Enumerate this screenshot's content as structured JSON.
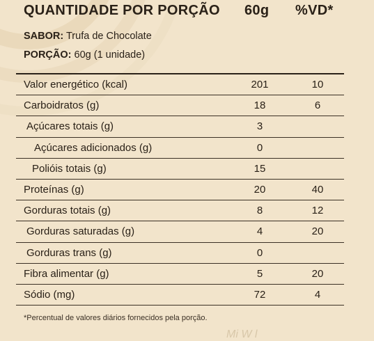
{
  "header": {
    "title": "QUANTIDADE POR PORÇÃO",
    "quantity": "60g",
    "dv": "%VD*"
  },
  "flavor": {
    "label": "SABOR:",
    "value": "Trufa de Chocolate"
  },
  "portion": {
    "label": "PORÇÃO:",
    "value": "60g (1 unidade)"
  },
  "rows": [
    {
      "name": "Valor energético (kcal)",
      "amount": "201",
      "dv": "10"
    },
    {
      "name": "Carboidratos (g)",
      "amount": "18",
      "dv": "6"
    },
    {
      "name": "Açúcares totais (g)",
      "amount": "3",
      "dv": ""
    },
    {
      "name": "Açúcares adicionados (g)",
      "amount": "0",
      "dv": ""
    },
    {
      "name": "Polióis totais (g)",
      "amount": "15",
      "dv": ""
    },
    {
      "name": "Proteínas (g)",
      "amount": "20",
      "dv": "40"
    },
    {
      "name": "Gorduras totais (g)",
      "amount": "8",
      "dv": "12"
    },
    {
      "name": "Gorduras saturadas (g)",
      "amount": "4",
      "dv": "20"
    },
    {
      "name": "Gorduras trans (g)",
      "amount": "0",
      "dv": ""
    },
    {
      "name": "Fibra alimentar (g)",
      "amount": "5",
      "dv": "20"
    },
    {
      "name": "Sódio (mg)",
      "amount": "72",
      "dv": "4"
    }
  ],
  "footnote": "*Percentual de valores diários fornecidos pela porção.",
  "watermark": "Mi   W   l"
}
